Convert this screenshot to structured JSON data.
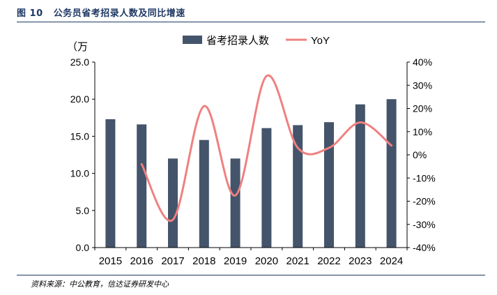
{
  "figure": {
    "label": "图 10",
    "title": "公务员省考招录人数及同比增速",
    "source": "资料来源：中公教育，信达证券研发中心"
  },
  "chart_data": {
    "type": "bar",
    "categories": [
      "2015",
      "2016",
      "2017",
      "2018",
      "2019",
      "2020",
      "2021",
      "2022",
      "2023",
      "2024"
    ],
    "series": [
      {
        "name": "省考招录人数",
        "type": "bar",
        "axis": "left",
        "color": "#44546a",
        "values": [
          17.3,
          16.6,
          12.0,
          14.5,
          12.0,
          16.1,
          16.5,
          16.9,
          19.3,
          20.0
        ]
      },
      {
        "name": "YoY",
        "type": "line",
        "axis": "right",
        "color": "#f08080",
        "values": [
          null,
          -4.0,
          -28.0,
          21.0,
          -17.5,
          34.0,
          3.0,
          3.0,
          14.0,
          4.0
        ]
      }
    ],
    "left_axis": {
      "unit_label": "（万",
      "min": 0,
      "max": 25,
      "ticks": [
        "0.0",
        "5.0",
        "10.0",
        "15.0",
        "20.0",
        "25.0"
      ]
    },
    "right_axis": {
      "min": -40,
      "max": 40,
      "ticks": [
        "-40%",
        "-30%",
        "-20%",
        "-10%",
        "0%",
        "10%",
        "20%",
        "30%",
        "40%"
      ]
    },
    "legend": {
      "position": "top"
    },
    "grid": false
  }
}
